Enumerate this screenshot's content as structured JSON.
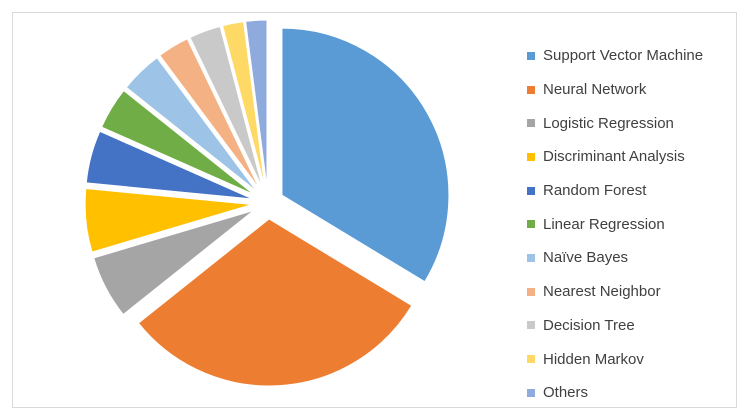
{
  "chart_data": {
    "type": "pie",
    "title": "",
    "exploded": true,
    "legend_position": "right",
    "series": [
      {
        "name": "Support Vector Machine",
        "value": 33,
        "color": "#5b9bd5"
      },
      {
        "name": "Neural Network",
        "value": 30,
        "color": "#ed7d31"
      },
      {
        "name": "Logistic Regression",
        "value": 6,
        "color": "#a5a5a5"
      },
      {
        "name": "Discriminant Analysis",
        "value": 6,
        "color": "#ffc000"
      },
      {
        "name": "Random Forest",
        "value": 5,
        "color": "#4472c4"
      },
      {
        "name": "Linear Regression",
        "value": 4,
        "color": "#70ad47"
      },
      {
        "name": "Naïve Bayes",
        "value": 4,
        "color": "#9dc3e6"
      },
      {
        "name": "Nearest Neighbor",
        "value": 3,
        "color": "#f4b183"
      },
      {
        "name": "Decision Tree",
        "value": 3,
        "color": "#c9c9c9"
      },
      {
        "name": "Hidden Markov",
        "value": 2,
        "color": "#ffd966"
      },
      {
        "name": "Others",
        "value": 2,
        "color": "#8faadc"
      }
    ]
  }
}
